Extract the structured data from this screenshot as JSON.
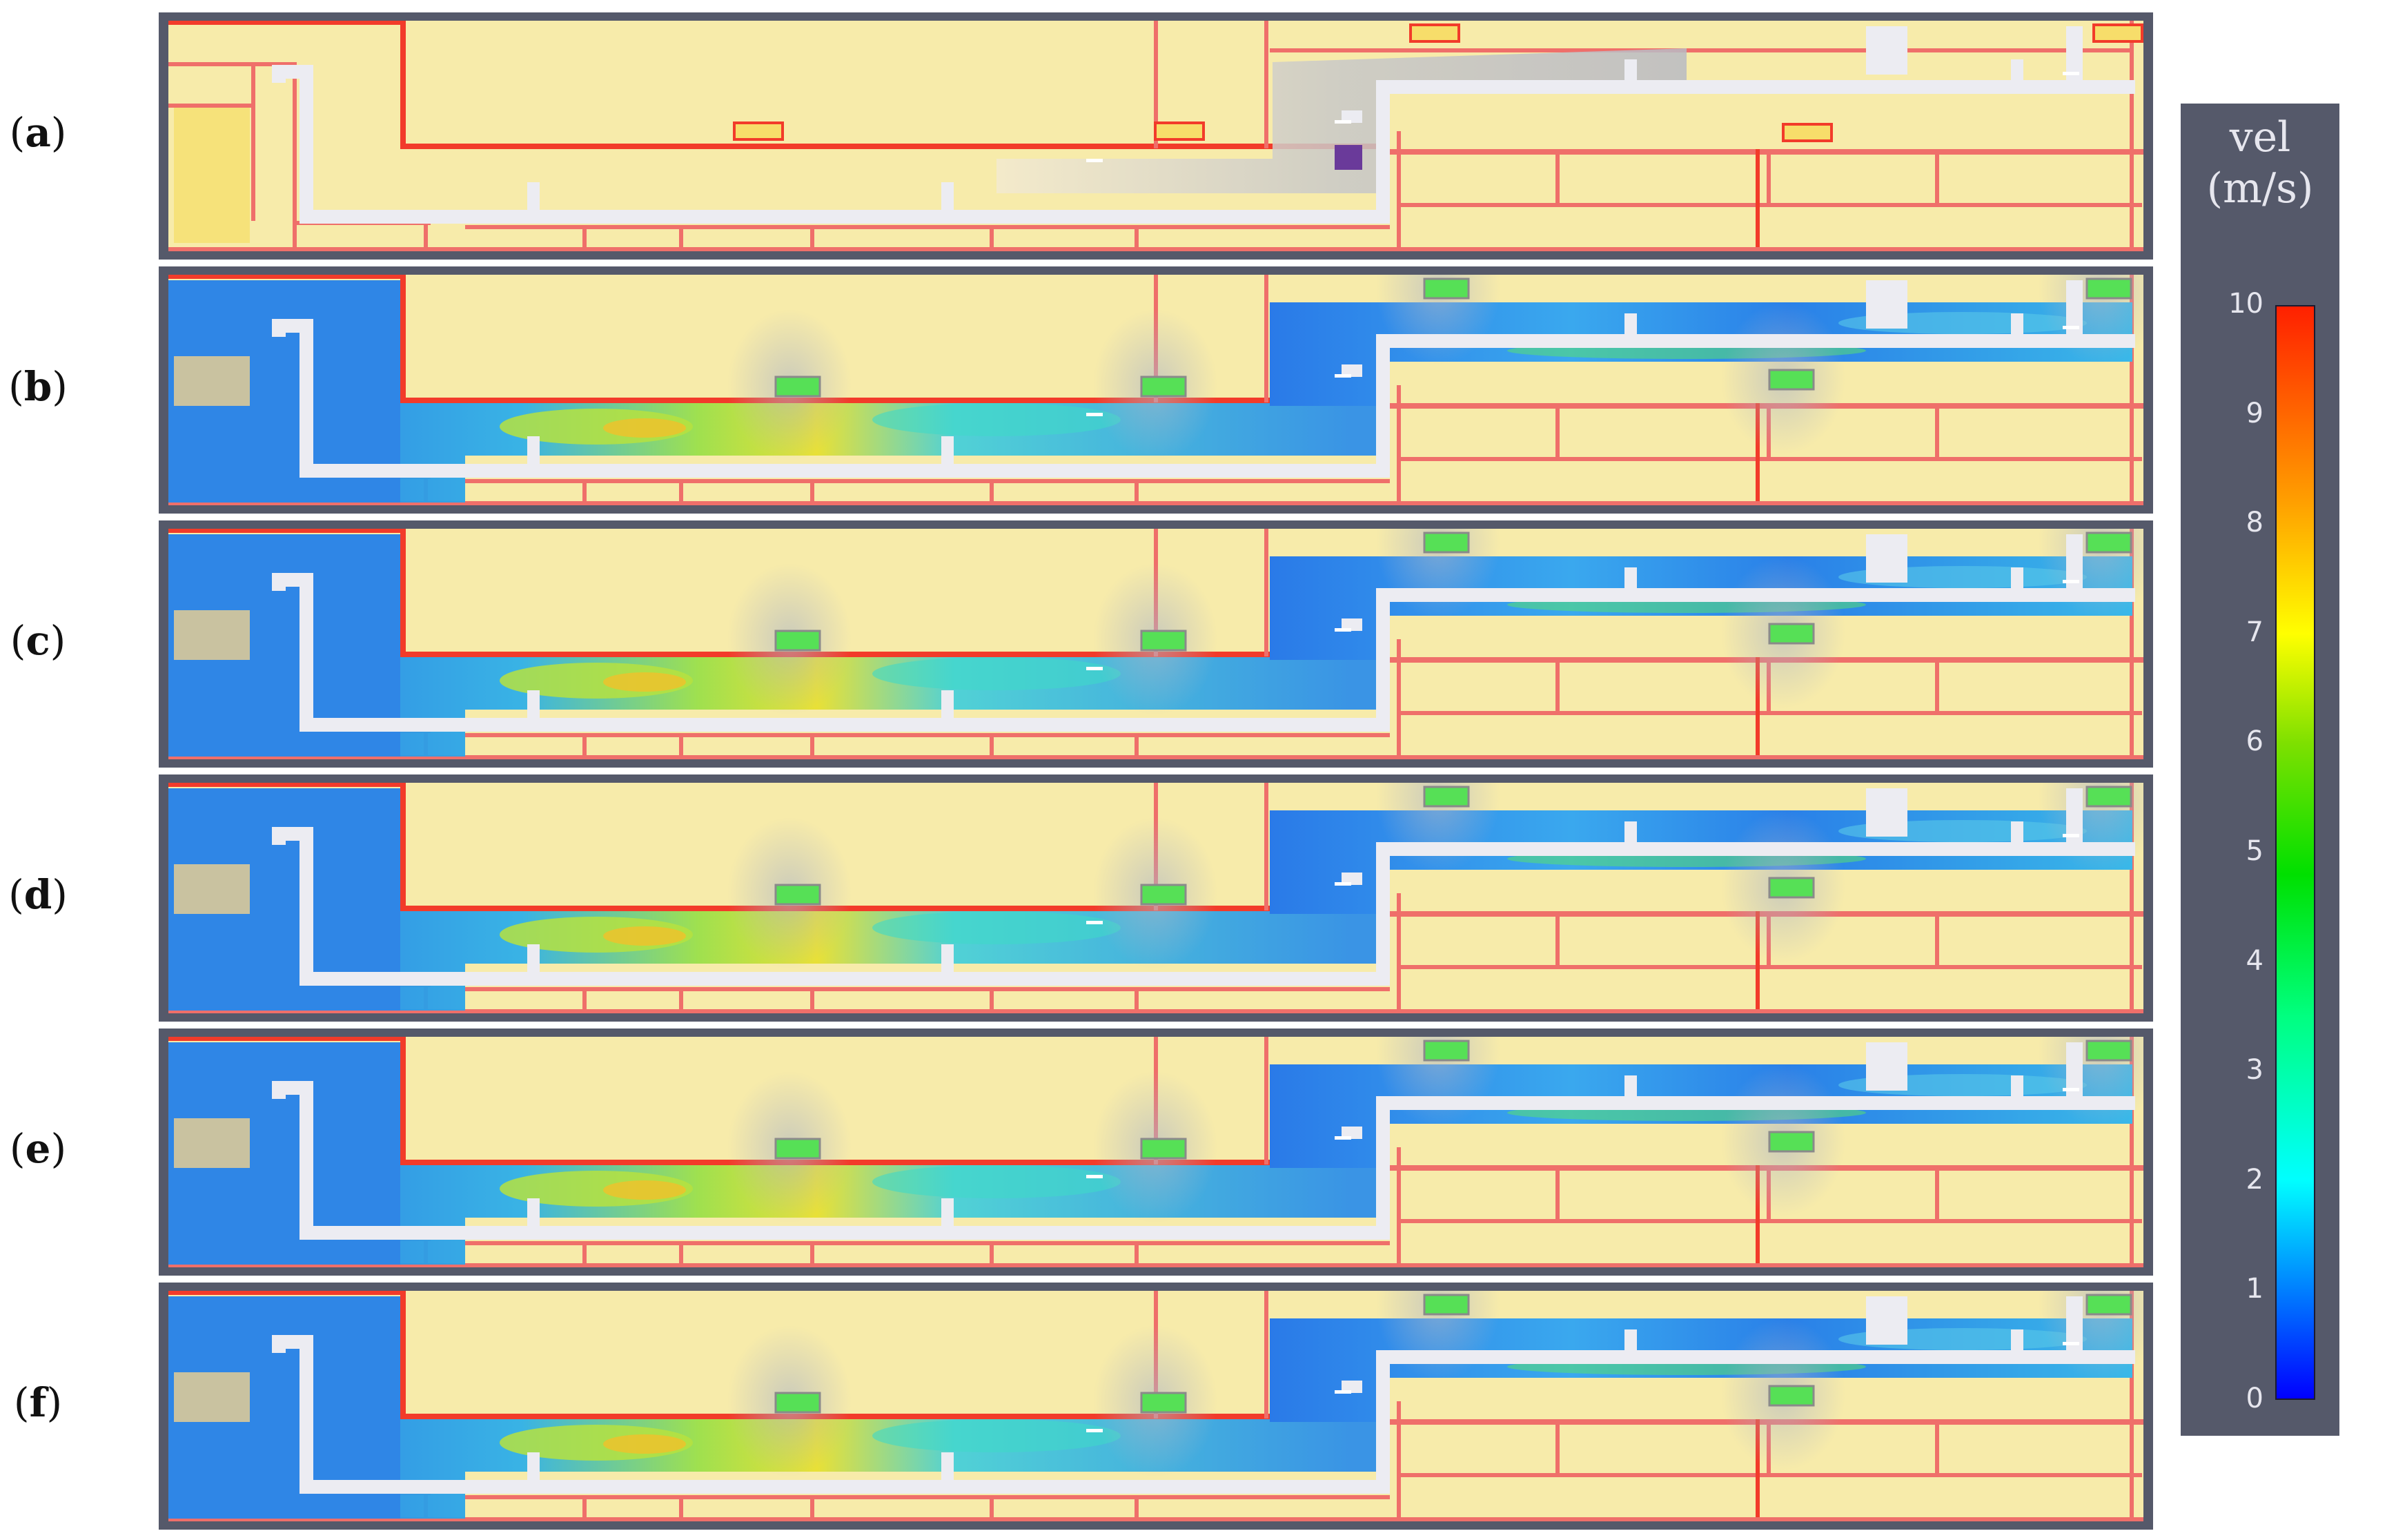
{
  "panels": [
    {
      "letter": "a",
      "mode": "initial"
    },
    {
      "letter": "b",
      "mode": "flow"
    },
    {
      "letter": "c",
      "mode": "flow"
    },
    {
      "letter": "d",
      "mode": "flow"
    },
    {
      "letter": "e",
      "mode": "flow"
    },
    {
      "letter": "f",
      "mode": "flow"
    }
  ],
  "legend": {
    "title_line1": "vel",
    "title_line2": "(m/s)",
    "ticks": [
      "10",
      "9",
      "8",
      "7",
      "6",
      "5",
      "4",
      "3",
      "2",
      "1",
      "0"
    ],
    "min": 0,
    "max": 10
  },
  "colors": {
    "room": "#f7ebaa",
    "wall": "#ef6f6a",
    "wall_strong": "#f23b2a",
    "corridor": "#ececf2",
    "frame": "#55596a",
    "flow_low": "#1f6fe8",
    "flow_mid": "#3cc7f0",
    "flow_high": "#e8e030",
    "vent": "#56e056"
  }
}
